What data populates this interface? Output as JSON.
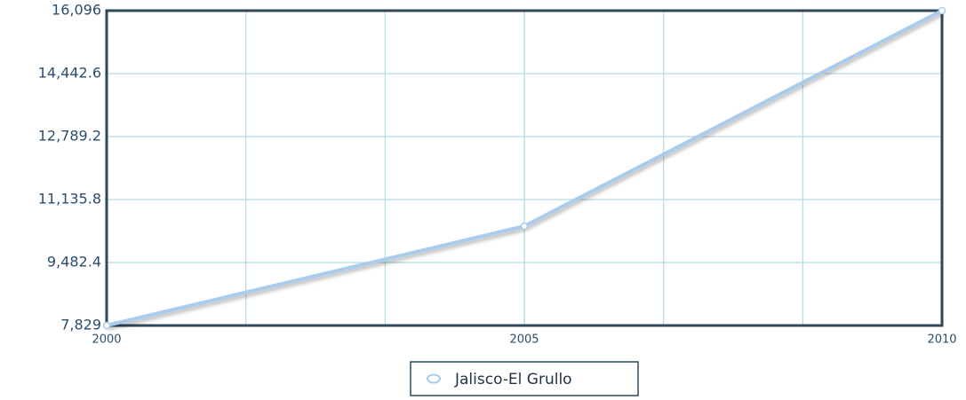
{
  "chart_data": {
    "type": "line",
    "x": [
      2000,
      2005,
      2010
    ],
    "series": [
      {
        "name": "Jalisco-El Grullo",
        "color": "#a9cbec",
        "values": [
          7829,
          10437,
          16096
        ]
      }
    ],
    "xlim": [
      2000,
      2010
    ],
    "xticks": [
      2000,
      2005,
      2010
    ],
    "ylim": [
      7829,
      16096
    ],
    "yticks": [
      {
        "value": 7829,
        "label": "7,829"
      },
      {
        "value": 9482.4,
        "label": "9,482.4"
      },
      {
        "value": 11135.8,
        "label": "11,135.8"
      },
      {
        "value": 12789.2,
        "label": "12,789.2"
      },
      {
        "value": 14442.6,
        "label": "14,442.6"
      },
      {
        "value": 16096,
        "label": "16,096"
      }
    ],
    "grid": true
  }
}
